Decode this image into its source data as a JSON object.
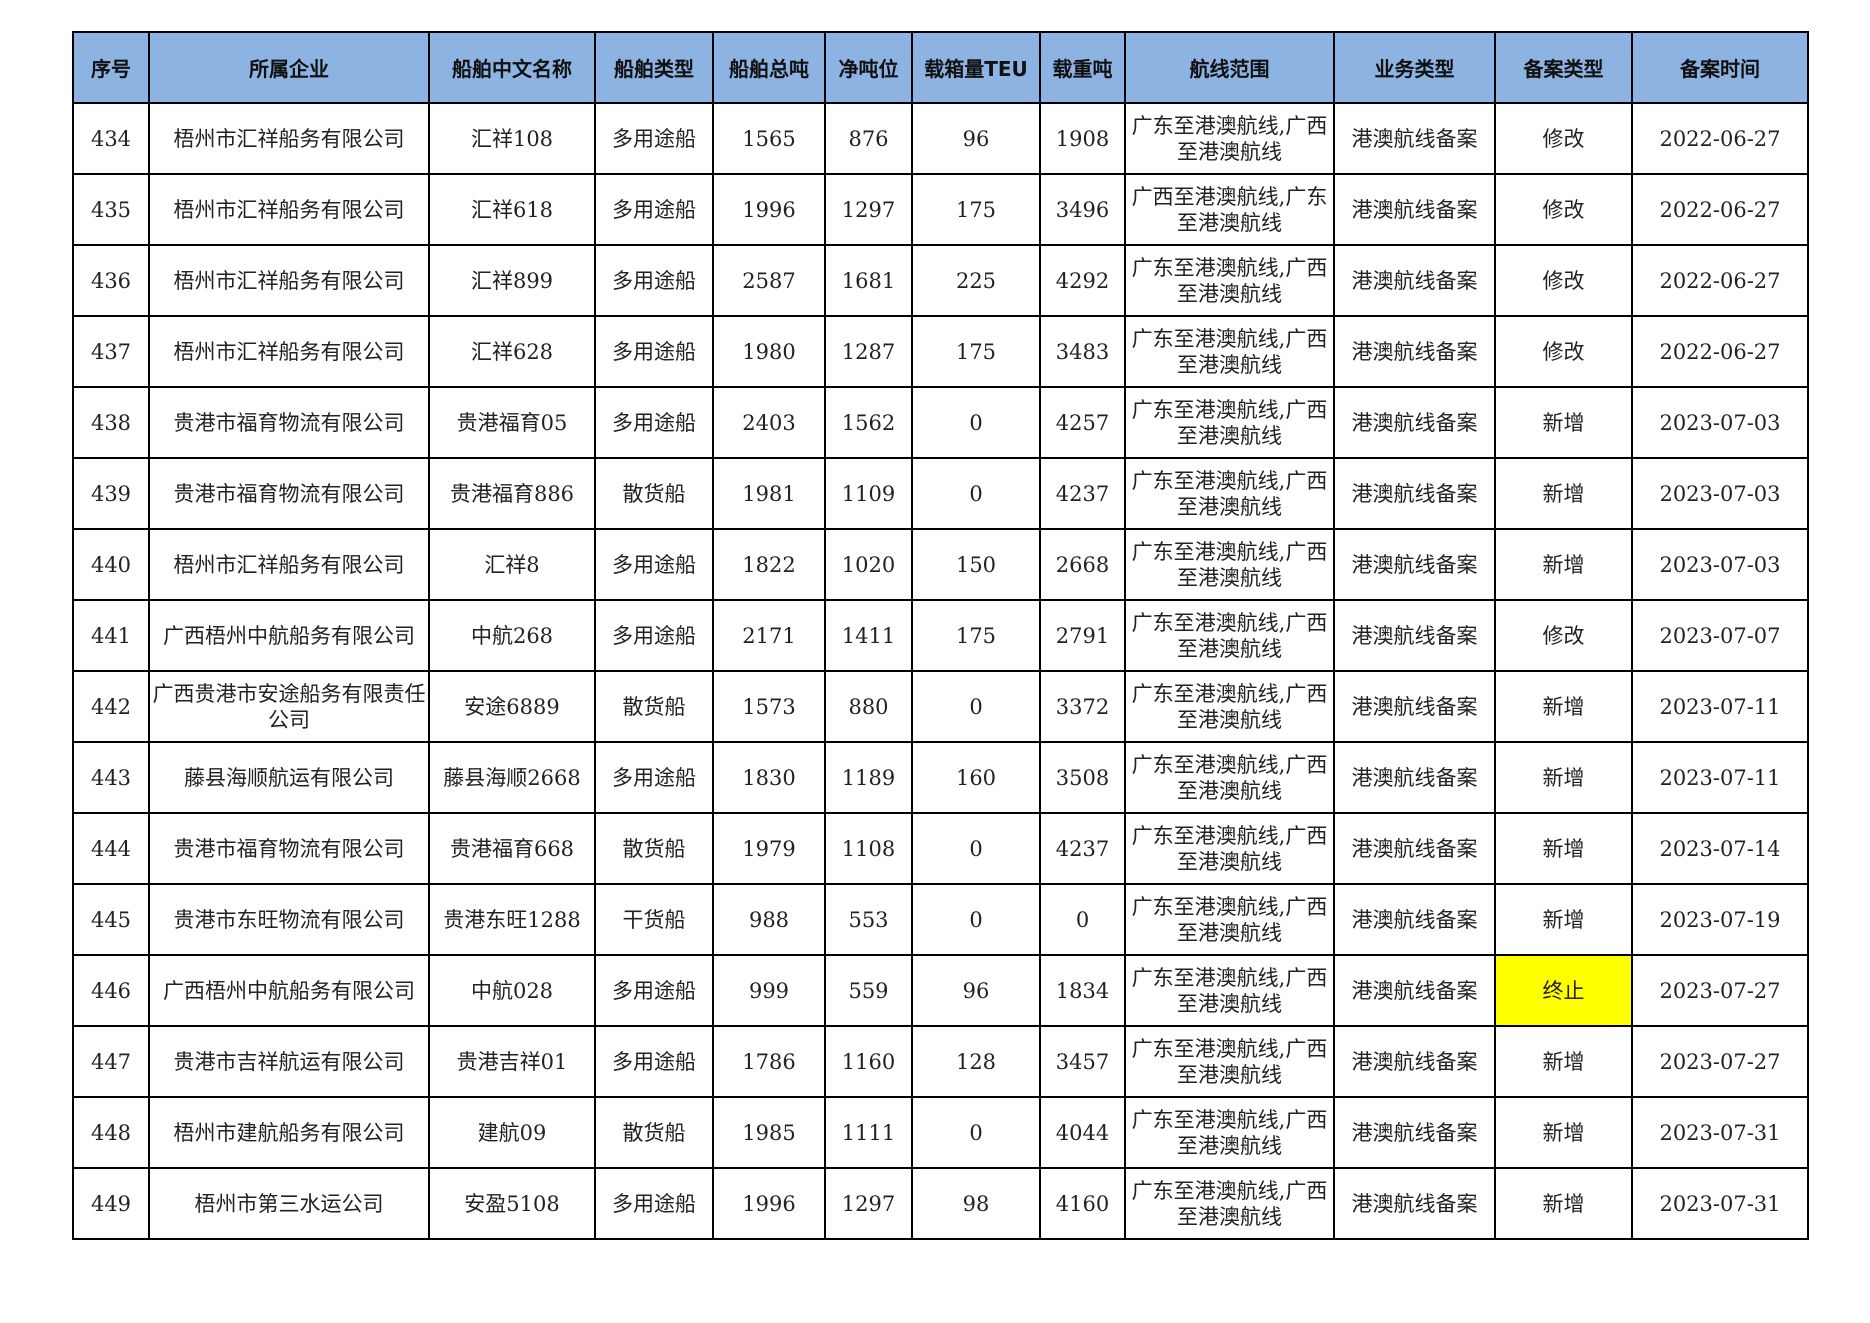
{
  "table": {
    "headers": [
      "序号",
      "所属企业",
      "船舶中文名称",
      "船舶类型",
      "船舶总吨",
      "净吨位",
      "载箱量TEU",
      "载重吨",
      "航线范围",
      "业务类型",
      "备案类型",
      "备案时间"
    ],
    "highlight_color": "#ffff00",
    "rows": [
      [
        "434",
        "梧州市汇祥船务有限公司",
        "汇祥108",
        "多用途船",
        "1565",
        "876",
        "96",
        "1908",
        "广东至港澳航线,广西至港澳航线",
        "港澳航线备案",
        "修改",
        "2022-06-27"
      ],
      [
        "435",
        "梧州市汇祥船务有限公司",
        "汇祥618",
        "多用途船",
        "1996",
        "1297",
        "175",
        "3496",
        "广西至港澳航线,广东至港澳航线",
        "港澳航线备案",
        "修改",
        "2022-06-27"
      ],
      [
        "436",
        "梧州市汇祥船务有限公司",
        "汇祥899",
        "多用途船",
        "2587",
        "1681",
        "225",
        "4292",
        "广东至港澳航线,广西至港澳航线",
        "港澳航线备案",
        "修改",
        "2022-06-27"
      ],
      [
        "437",
        "梧州市汇祥船务有限公司",
        "汇祥628",
        "多用途船",
        "1980",
        "1287",
        "175",
        "3483",
        "广东至港澳航线,广西至港澳航线",
        "港澳航线备案",
        "修改",
        "2022-06-27"
      ],
      [
        "438",
        "贵港市福育物流有限公司",
        "贵港福育05",
        "多用途船",
        "2403",
        "1562",
        "0",
        "4257",
        "广东至港澳航线,广西至港澳航线",
        "港澳航线备案",
        "新增",
        "2023-07-03"
      ],
      [
        "439",
        "贵港市福育物流有限公司",
        "贵港福育886",
        "散货船",
        "1981",
        "1109",
        "0",
        "4237",
        "广东至港澳航线,广西至港澳航线",
        "港澳航线备案",
        "新增",
        "2023-07-03"
      ],
      [
        "440",
        "梧州市汇祥船务有限公司",
        "汇祥8",
        "多用途船",
        "1822",
        "1020",
        "150",
        "2668",
        "广东至港澳航线,广西至港澳航线",
        "港澳航线备案",
        "新增",
        "2023-07-03"
      ],
      [
        "441",
        "广西梧州中航船务有限公司",
        "中航268",
        "多用途船",
        "2171",
        "1411",
        "175",
        "2791",
        "广东至港澳航线,广西至港澳航线",
        "港澳航线备案",
        "修改",
        "2023-07-07"
      ],
      [
        "442",
        "广西贵港市安途船务有限责任公司",
        "安途6889",
        "散货船",
        "1573",
        "880",
        "0",
        "3372",
        "广东至港澳航线,广西至港澳航线",
        "港澳航线备案",
        "新增",
        "2023-07-11"
      ],
      [
        "443",
        "藤县海顺航运有限公司",
        "藤县海顺2668",
        "多用途船",
        "1830",
        "1189",
        "160",
        "3508",
        "广东至港澳航线,广西至港澳航线",
        "港澳航线备案",
        "新增",
        "2023-07-11"
      ],
      [
        "444",
        "贵港市福育物流有限公司",
        "贵港福育668",
        "散货船",
        "1979",
        "1108",
        "0",
        "4237",
        "广东至港澳航线,广西至港澳航线",
        "港澳航线备案",
        "新增",
        "2023-07-14"
      ],
      [
        "445",
        "贵港市东旺物流有限公司",
        "贵港东旺1288",
        "干货船",
        "988",
        "553",
        "0",
        "0",
        "广东至港澳航线,广西至港澳航线",
        "港澳航线备案",
        "新增",
        "2023-07-19"
      ],
      [
        "446",
        "广西梧州中航船务有限公司",
        "中航028",
        "多用途船",
        "999",
        "559",
        "96",
        "1834",
        "广东至港澳航线,广西至港澳航线",
        "港澳航线备案",
        "终止",
        "2023-07-27"
      ],
      [
        "447",
        "贵港市吉祥航运有限公司",
        "贵港吉祥01",
        "多用途船",
        "1786",
        "1160",
        "128",
        "3457",
        "广东至港澳航线,广西至港澳航线",
        "港澳航线备案",
        "新增",
        "2023-07-27"
      ],
      [
        "448",
        "梧州市建航船务有限公司",
        "建航09",
        "散货船",
        "1985",
        "1111",
        "0",
        "4044",
        "广东至港澳航线,广西至港澳航线",
        "港澳航线备案",
        "新增",
        "2023-07-31"
      ],
      [
        "449",
        "梧州市第三水运公司",
        "安盈5108",
        "多用途船",
        "1996",
        "1297",
        "98",
        "4160",
        "广东至港澳航线,广西至港澳航线",
        "港澳航线备案",
        "新增",
        "2023-07-31"
      ]
    ],
    "highlighted_cells": [
      {
        "row": 12,
        "col": 10
      }
    ]
  }
}
